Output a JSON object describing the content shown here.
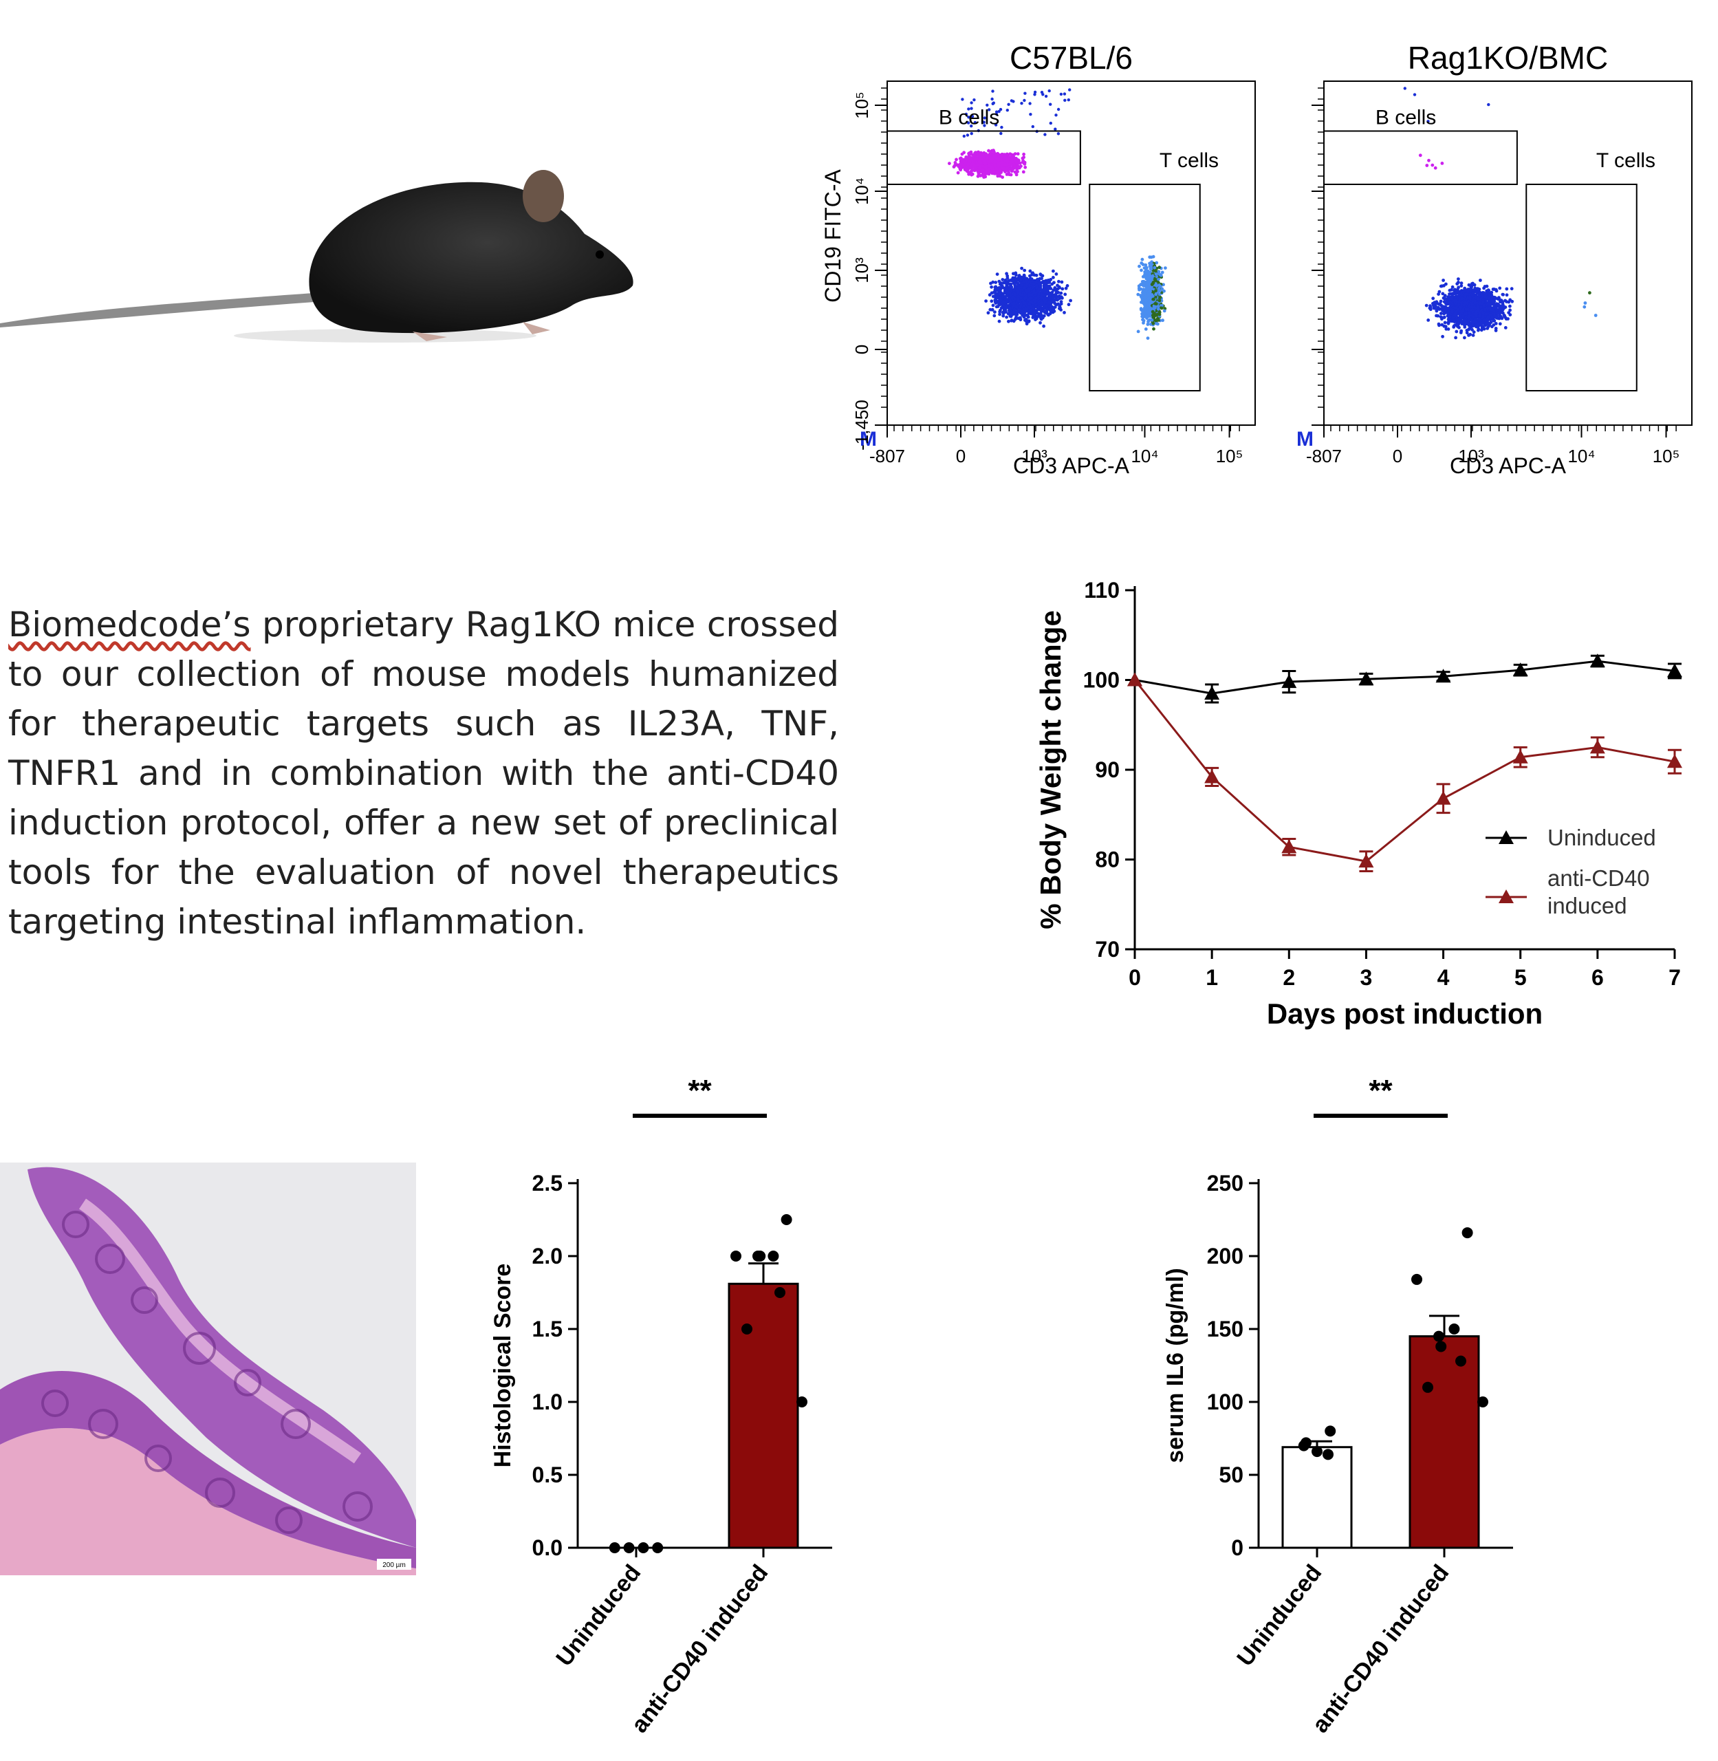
{
  "description": {
    "brand": "Biomedcode’s",
    "text": " proprietary Rag1KO mice crossed to our collection of mouse models humanized for therapeutic targets such as IL23A, TNF, TNFR1 and in combination with the anti-CD40 induction protocol, offer a new set of preclinical tools for the evaluation of novel therapeutics targeting intestinal inflammation."
  },
  "histology": {
    "scale_label": "200 µm"
  },
  "flow": {
    "colors": {
      "bcells": "#cc22ee",
      "tcells_light": "#4a8ef0",
      "tcells_dark": "#2f6a1e",
      "other": "#1a2fd6"
    },
    "panels": [
      {
        "title": "C57BL/6",
        "xlabel": "CD3 APC-A",
        "ylabel": "CD19 FITC-A",
        "x_ticks": [
          "-807",
          "0",
          "10³",
          "10⁴",
          "10⁵"
        ],
        "y_ticks": [
          "-1,450",
          "0",
          "10³",
          "10⁴",
          "10⁵"
        ],
        "gates": [
          "B cells",
          "T cells"
        ],
        "marker": "M",
        "populations": {
          "bcells": "large",
          "tcells": "large",
          "other": "large"
        }
      },
      {
        "title": "Rag1KO/BMC",
        "xlabel": "CD3 APC-A",
        "ylabel": "",
        "x_ticks": [
          "-807",
          "0",
          "10³",
          "10⁴",
          "10⁵"
        ],
        "y_ticks": [],
        "gates": [
          "B cells",
          "T cells"
        ],
        "marker": "M",
        "populations": {
          "bcells": "few",
          "tcells": "few",
          "other": "large"
        }
      }
    ]
  },
  "chart_data": [
    {
      "type": "line",
      "xlabel": "Days post induction",
      "ylabel": "% Body Weight change",
      "x": [
        0,
        1,
        2,
        3,
        4,
        5,
        6,
        7
      ],
      "xlim": [
        0,
        7
      ],
      "ylim": [
        70,
        110
      ],
      "yticks": [
        70,
        80,
        90,
        100,
        110
      ],
      "legend_position": "right",
      "series": [
        {
          "name": "Uninduced",
          "color": "#000000",
          "values": [
            100,
            98.5,
            99.8,
            100.1,
            100.4,
            101.1,
            102.1,
            101.0
          ],
          "errors": [
            0,
            1.0,
            1.2,
            0.6,
            0.5,
            0.6,
            0.6,
            0.8
          ]
        },
        {
          "name": "anti-CD40 induced",
          "color": "#8b1a1a",
          "values": [
            100,
            89.2,
            81.4,
            79.8,
            86.8,
            91.4,
            92.5,
            90.9
          ],
          "errors": [
            0,
            1.0,
            0.9,
            1.1,
            1.6,
            1.1,
            1.1,
            1.3
          ]
        }
      ]
    },
    {
      "type": "bar",
      "ylabel": "Histological Score",
      "categories": [
        "Uninduced",
        "anti-CD40 induced"
      ],
      "values": [
        0.0,
        1.81
      ],
      "errors": [
        0.0,
        0.14
      ],
      "ylim": [
        0,
        2.5
      ],
      "yticks": [
        "0.0",
        "0.5",
        "1.0",
        "1.5",
        "2.0",
        "2.5"
      ],
      "significance": "**",
      "colors": [
        "#ffffff",
        "#8b0a0a"
      ],
      "points": [
        [
          0,
          0,
          0,
          0
        ],
        [
          2.25,
          2.0,
          2.0,
          2.0,
          2.0,
          1.75,
          1.5,
          1.0
        ]
      ]
    },
    {
      "type": "bar",
      "ylabel": "serum IL6 (pg/ml)",
      "categories": [
        "Uninduced",
        "anti-CD40 induced"
      ],
      "values": [
        69,
        145
      ],
      "errors": [
        4,
        14
      ],
      "ylim": [
        0,
        250
      ],
      "yticks": [
        "0",
        "50",
        "100",
        "150",
        "200",
        "250"
      ],
      "significance": "**",
      "colors": [
        "#ffffff",
        "#8b0a0a"
      ],
      "points": [
        [
          80,
          72,
          66,
          64,
          70
        ],
        [
          216,
          184,
          150,
          145,
          138,
          128,
          110,
          100
        ]
      ]
    }
  ]
}
